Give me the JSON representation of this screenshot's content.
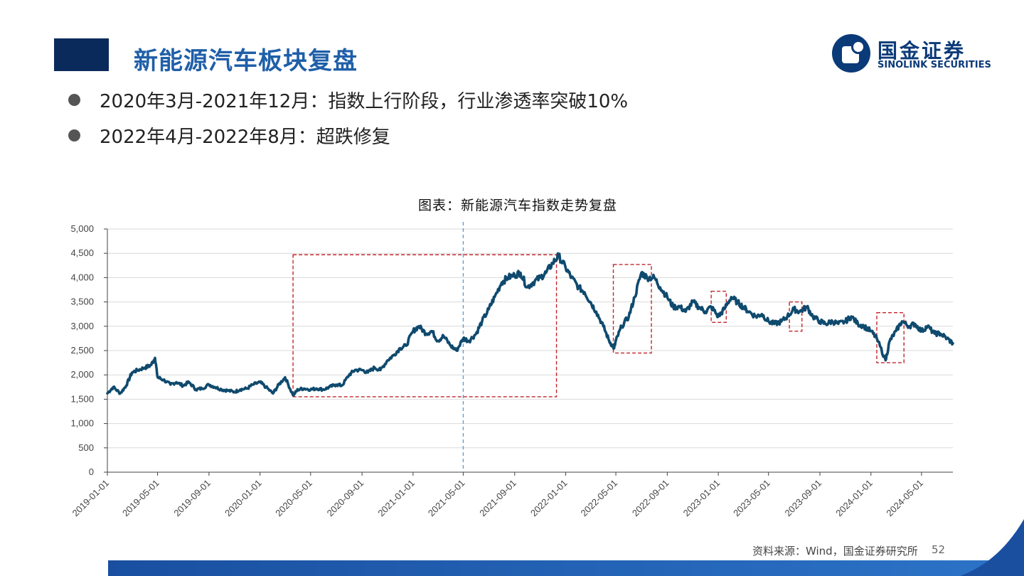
{
  "header": {
    "title": "新能源汽车板块复盘",
    "logo_cn": "国金证券",
    "logo_en": "SINOLINK SECURITIES"
  },
  "bullets": [
    "2020年3月-2021年12月：指数上行阶段，行业渗透率突破10%",
    "2022年4月-2022年8月：超跌修复"
  ],
  "chart_title": "图表：新能源汽车指数走势复盘",
  "footer": {
    "source": "资料来源：Wind，国金证券研究所",
    "page_number": "52"
  },
  "colors": {
    "title_blue": "#1f5fa8",
    "navy": "#0b2a5c",
    "line": "#0f4a6e",
    "highlight_box": "#c0262d",
    "marker_line": "#5b9bd5"
  },
  "chart_data": {
    "type": "line",
    "title": "图表：新能源汽车指数走势复盘",
    "xlabel": "",
    "ylabel": "",
    "ylim": [
      0,
      5000
    ],
    "yticks": [
      0,
      500,
      1000,
      1500,
      2000,
      2500,
      3000,
      3500,
      4000,
      4500,
      5000
    ],
    "ytick_labels": [
      "0",
      "500",
      "1,000",
      "1,500",
      "2,000",
      "2,500",
      "3,000",
      "3,500",
      "4,000",
      "4,500",
      "5,000"
    ],
    "xlim": [
      "2019-01-01",
      "2024-07-15"
    ],
    "xticks": [
      "2019-01-01",
      "2019-05-01",
      "2019-09-01",
      "2020-01-01",
      "2020-05-01",
      "2020-09-01",
      "2021-01-01",
      "2021-05-01",
      "2021-09-01",
      "2022-01-01",
      "2022-05-01",
      "2022-09-01",
      "2023-01-01",
      "2023-05-01",
      "2023-09-01",
      "2024-01-01",
      "2024-05-01"
    ],
    "grid": "horizontal",
    "series": [
      {
        "x": [
          "2019-01-01",
          "2019-01-15",
          "2019-02-01",
          "2019-02-15",
          "2019-03-01",
          "2019-03-15",
          "2019-04-01",
          "2019-04-15",
          "2019-04-25",
          "2019-05-01",
          "2019-05-15",
          "2019-06-01",
          "2019-06-15",
          "2019-07-01",
          "2019-07-15",
          "2019-08-01",
          "2019-08-15",
          "2019-09-01",
          "2019-09-15",
          "2019-10-01",
          "2019-10-15",
          "2019-11-01",
          "2019-11-15",
          "2019-12-01",
          "2019-12-15",
          "2020-01-01",
          "2020-01-15",
          "2020-02-01",
          "2020-02-15",
          "2020-03-01",
          "2020-03-20",
          "2020-04-01",
          "2020-04-15",
          "2020-05-01",
          "2020-05-15",
          "2020-06-01",
          "2020-06-15",
          "2020-07-01",
          "2020-07-15",
          "2020-08-01",
          "2020-08-15",
          "2020-09-01",
          "2020-09-15",
          "2020-10-01",
          "2020-10-15",
          "2020-11-01",
          "2020-11-15",
          "2020-12-01",
          "2020-12-15",
          "2021-01-01",
          "2021-01-15",
          "2021-02-01",
          "2021-02-15",
          "2021-03-01",
          "2021-03-15",
          "2021-04-01",
          "2021-04-15",
          "2021-05-01",
          "2021-05-15",
          "2021-06-01",
          "2021-06-15",
          "2021-07-01",
          "2021-07-15",
          "2021-08-01",
          "2021-08-15",
          "2021-09-01",
          "2021-09-15",
          "2021-10-01",
          "2021-10-15",
          "2021-11-01",
          "2021-11-15",
          "2021-12-01",
          "2021-12-15",
          "2022-01-01",
          "2022-01-15",
          "2022-02-01",
          "2022-02-15",
          "2022-03-01",
          "2022-03-15",
          "2022-04-01",
          "2022-04-15",
          "2022-04-27",
          "2022-05-01",
          "2022-05-15",
          "2022-06-01",
          "2022-06-15",
          "2022-07-01",
          "2022-07-15",
          "2022-08-01",
          "2022-08-15",
          "2022-09-01",
          "2022-09-15",
          "2022-10-01",
          "2022-10-15",
          "2022-11-01",
          "2022-11-15",
          "2022-12-01",
          "2022-12-15",
          "2023-01-01",
          "2023-01-15",
          "2023-02-01",
          "2023-02-15",
          "2023-03-01",
          "2023-03-15",
          "2023-04-01",
          "2023-04-15",
          "2023-05-01",
          "2023-05-15",
          "2023-06-01",
          "2023-06-15",
          "2023-07-01",
          "2023-07-15",
          "2023-08-01",
          "2023-08-15",
          "2023-09-01",
          "2023-09-15",
          "2023-10-01",
          "2023-10-15",
          "2023-11-01",
          "2023-11-15",
          "2023-12-01",
          "2023-12-15",
          "2024-01-01",
          "2024-01-15",
          "2024-02-05",
          "2024-02-15",
          "2024-03-01",
          "2024-03-15",
          "2024-04-01",
          "2024-04-15",
          "2024-05-01",
          "2024-05-15",
          "2024-06-01",
          "2024-06-15",
          "2024-07-01",
          "2024-07-15"
        ],
        "values": [
          1620,
          1750,
          1620,
          1780,
          2050,
          2100,
          2150,
          2200,
          2350,
          1950,
          1900,
          1800,
          1850,
          1780,
          1850,
          1700,
          1720,
          1800,
          1750,
          1700,
          1680,
          1650,
          1700,
          1720,
          1800,
          1850,
          1750,
          1620,
          1800,
          1950,
          1580,
          1700,
          1720,
          1700,
          1720,
          1700,
          1750,
          1800,
          1780,
          2000,
          2100,
          2100,
          2050,
          2150,
          2100,
          2300,
          2400,
          2550,
          2600,
          2900,
          3000,
          2850,
          2900,
          2700,
          2800,
          2600,
          2500,
          2750,
          2700,
          2850,
          3100,
          3350,
          3600,
          3900,
          4000,
          4050,
          4100,
          3800,
          3900,
          4000,
          4100,
          4300,
          4450,
          4200,
          4000,
          3800,
          3700,
          3500,
          3300,
          3000,
          2700,
          2550,
          2700,
          3000,
          3200,
          3600,
          4100,
          4000,
          4000,
          3800,
          3600,
          3400,
          3400,
          3300,
          3500,
          3400,
          3300,
          3400,
          3200,
          3350,
          3600,
          3500,
          3400,
          3300,
          3200,
          3250,
          3100,
          3050,
          3100,
          3200,
          3350,
          3300,
          3400,
          3200,
          3100,
          3050,
          3100,
          3050,
          3100,
          3200,
          3050,
          3000,
          2900,
          2750,
          2300,
          2700,
          2900,
          3100,
          3000,
          3050,
          2900,
          3000,
          2850,
          2850,
          2750,
          2650
        ]
      }
    ],
    "annotations": {
      "vertical_marker": "2021-05-01",
      "highlight_boxes": [
        {
          "x": [
            "2020-03-20",
            "2021-12-10"
          ],
          "y": [
            1550,
            4470
          ]
        },
        {
          "x": [
            "2022-04-25",
            "2022-07-25"
          ],
          "y": [
            2450,
            4270
          ]
        },
        {
          "x": [
            "2022-12-15",
            "2023-01-20"
          ],
          "y": [
            3080,
            3720
          ]
        },
        {
          "x": [
            "2023-06-20",
            "2023-07-20"
          ],
          "y": [
            2900,
            3500
          ]
        },
        {
          "x": [
            "2024-01-15",
            "2024-03-20"
          ],
          "y": [
            2250,
            3280
          ]
        }
      ]
    }
  }
}
